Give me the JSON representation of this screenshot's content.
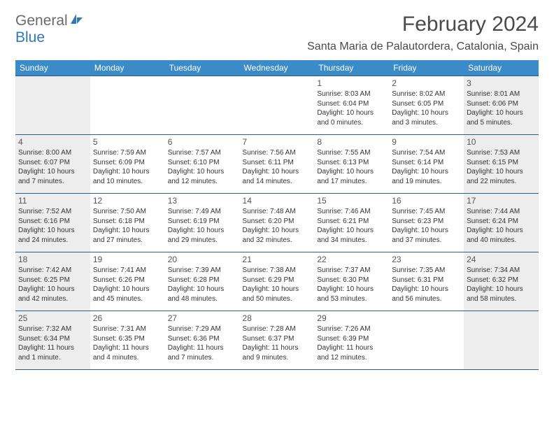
{
  "logo": {
    "general": "General",
    "blue": "Blue"
  },
  "title": "February 2024",
  "location": "Santa Maria de Palautordera, Catalonia, Spain",
  "header_bg": "#3b8bc8",
  "border_color": "#2a5d88",
  "weekend_bg": "#ededed",
  "weekdays": [
    "Sunday",
    "Monday",
    "Tuesday",
    "Wednesday",
    "Thursday",
    "Friday",
    "Saturday"
  ],
  "weeks": [
    [
      null,
      null,
      null,
      null,
      {
        "n": "1",
        "sr": "8:03 AM",
        "ss": "6:04 PM",
        "dl": "10 hours and 0 minutes."
      },
      {
        "n": "2",
        "sr": "8:02 AM",
        "ss": "6:05 PM",
        "dl": "10 hours and 3 minutes."
      },
      {
        "n": "3",
        "sr": "8:01 AM",
        "ss": "6:06 PM",
        "dl": "10 hours and 5 minutes."
      }
    ],
    [
      {
        "n": "4",
        "sr": "8:00 AM",
        "ss": "6:07 PM",
        "dl": "10 hours and 7 minutes."
      },
      {
        "n": "5",
        "sr": "7:59 AM",
        "ss": "6:09 PM",
        "dl": "10 hours and 10 minutes."
      },
      {
        "n": "6",
        "sr": "7:57 AM",
        "ss": "6:10 PM",
        "dl": "10 hours and 12 minutes."
      },
      {
        "n": "7",
        "sr": "7:56 AM",
        "ss": "6:11 PM",
        "dl": "10 hours and 14 minutes."
      },
      {
        "n": "8",
        "sr": "7:55 AM",
        "ss": "6:13 PM",
        "dl": "10 hours and 17 minutes."
      },
      {
        "n": "9",
        "sr": "7:54 AM",
        "ss": "6:14 PM",
        "dl": "10 hours and 19 minutes."
      },
      {
        "n": "10",
        "sr": "7:53 AM",
        "ss": "6:15 PM",
        "dl": "10 hours and 22 minutes."
      }
    ],
    [
      {
        "n": "11",
        "sr": "7:52 AM",
        "ss": "6:16 PM",
        "dl": "10 hours and 24 minutes."
      },
      {
        "n": "12",
        "sr": "7:50 AM",
        "ss": "6:18 PM",
        "dl": "10 hours and 27 minutes."
      },
      {
        "n": "13",
        "sr": "7:49 AM",
        "ss": "6:19 PM",
        "dl": "10 hours and 29 minutes."
      },
      {
        "n": "14",
        "sr": "7:48 AM",
        "ss": "6:20 PM",
        "dl": "10 hours and 32 minutes."
      },
      {
        "n": "15",
        "sr": "7:46 AM",
        "ss": "6:21 PM",
        "dl": "10 hours and 34 minutes."
      },
      {
        "n": "16",
        "sr": "7:45 AM",
        "ss": "6:23 PM",
        "dl": "10 hours and 37 minutes."
      },
      {
        "n": "17",
        "sr": "7:44 AM",
        "ss": "6:24 PM",
        "dl": "10 hours and 40 minutes."
      }
    ],
    [
      {
        "n": "18",
        "sr": "7:42 AM",
        "ss": "6:25 PM",
        "dl": "10 hours and 42 minutes."
      },
      {
        "n": "19",
        "sr": "7:41 AM",
        "ss": "6:26 PM",
        "dl": "10 hours and 45 minutes."
      },
      {
        "n": "20",
        "sr": "7:39 AM",
        "ss": "6:28 PM",
        "dl": "10 hours and 48 minutes."
      },
      {
        "n": "21",
        "sr": "7:38 AM",
        "ss": "6:29 PM",
        "dl": "10 hours and 50 minutes."
      },
      {
        "n": "22",
        "sr": "7:37 AM",
        "ss": "6:30 PM",
        "dl": "10 hours and 53 minutes."
      },
      {
        "n": "23",
        "sr": "7:35 AM",
        "ss": "6:31 PM",
        "dl": "10 hours and 56 minutes."
      },
      {
        "n": "24",
        "sr": "7:34 AM",
        "ss": "6:32 PM",
        "dl": "10 hours and 58 minutes."
      }
    ],
    [
      {
        "n": "25",
        "sr": "7:32 AM",
        "ss": "6:34 PM",
        "dl": "11 hours and 1 minute."
      },
      {
        "n": "26",
        "sr": "7:31 AM",
        "ss": "6:35 PM",
        "dl": "11 hours and 4 minutes."
      },
      {
        "n": "27",
        "sr": "7:29 AM",
        "ss": "6:36 PM",
        "dl": "11 hours and 7 minutes."
      },
      {
        "n": "28",
        "sr": "7:28 AM",
        "ss": "6:37 PM",
        "dl": "11 hours and 9 minutes."
      },
      {
        "n": "29",
        "sr": "7:26 AM",
        "ss": "6:39 PM",
        "dl": "11 hours and 12 minutes."
      },
      null,
      null
    ]
  ]
}
